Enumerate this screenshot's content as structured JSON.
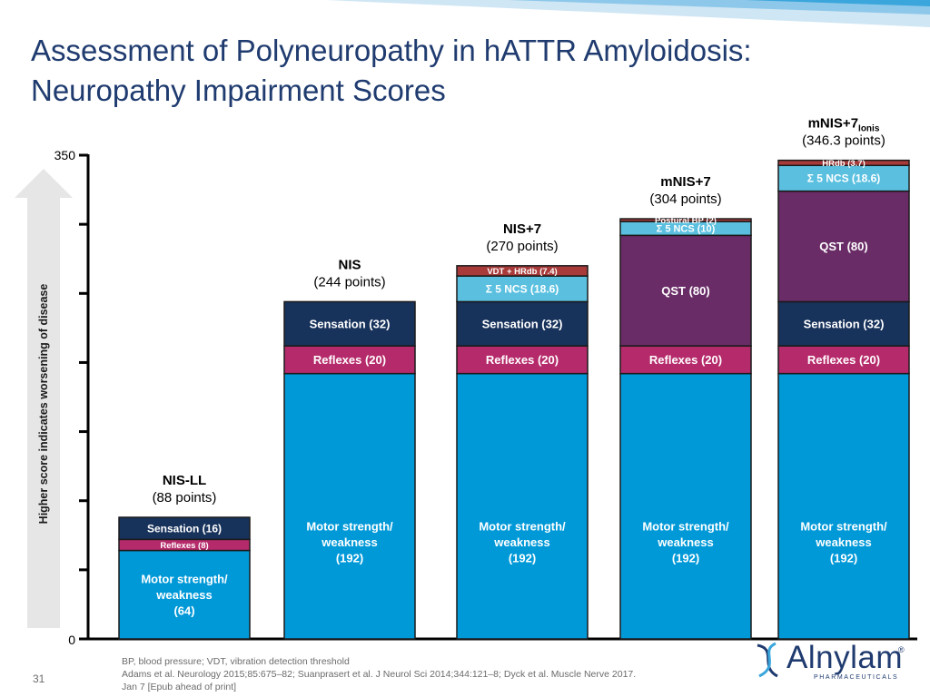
{
  "title_line1": "Assessment of Polyneuropathy in hATTR Amyloidosis:",
  "title_line2": "Neuropathy Impairment Scores",
  "slide_number": "31",
  "footnotes": [
    "BP, blood pressure; VDT, vibration detection threshold",
    "Adams et al. Neurology 2015;85:675–82; Suanprasert et al. J Neurol Sci 2014;344:121–8; Dyck et al. Muscle Nerve 2017.",
    "Jan 7 [Epub ahead of print]"
  ],
  "logo": {
    "word": "Alnylam",
    "sub": "PHARMACEUTICALS",
    "reg": "®"
  },
  "colors": {
    "motor": "#0099d8",
    "reflexes": "#b52a6a",
    "sensation": "#17325b",
    "ncs": "#5bc0e0",
    "vdt_hrdb": "#a83a3a",
    "qst": "#6a2c67",
    "postural": "#a83a3a",
    "title": "#1f3b6f",
    "arrow": "#e6e6e6"
  },
  "chart_data": {
    "type": "bar",
    "stacked": true,
    "ylim": [
      0,
      350
    ],
    "yticks": [
      "350",
      "0"
    ],
    "ylabel": "Higher score indicates worsening of disease",
    "grid": false,
    "categories": [
      {
        "name": "NIS-LL",
        "total_label": "(88 points)",
        "segments": [
          {
            "label": [
              "Motor strength/",
              "weakness",
              "(64)"
            ],
            "value": 64,
            "color": "motor"
          },
          {
            "label": [
              "Reflexes (8)"
            ],
            "value": 8,
            "color": "reflexes"
          },
          {
            "label": [
              "Sensation (16)"
            ],
            "value": 16,
            "color": "sensation"
          }
        ]
      },
      {
        "name": "NIS",
        "total_label": "(244 points)",
        "segments": [
          {
            "label": [
              "Motor strength/",
              "weakness",
              "(192)"
            ],
            "value": 192,
            "color": "motor"
          },
          {
            "label": [
              "Reflexes (20)"
            ],
            "value": 20,
            "color": "reflexes"
          },
          {
            "label": [
              "Sensation (32)"
            ],
            "value": 32,
            "color": "sensation"
          }
        ]
      },
      {
        "name": "NIS+7",
        "total_label": "(270 points)",
        "segments": [
          {
            "label": [
              "Motor strength/",
              "weakness",
              "(192)"
            ],
            "value": 192,
            "color": "motor"
          },
          {
            "label": [
              "Reflexes (20)"
            ],
            "value": 20,
            "color": "reflexes"
          },
          {
            "label": [
              "Sensation (32)"
            ],
            "value": 32,
            "color": "sensation"
          },
          {
            "label": [
              "Σ 5 NCS (18.6)"
            ],
            "value": 18.6,
            "color": "ncs"
          },
          {
            "label": [
              "VDT  + HRdb (7.4)"
            ],
            "value": 7.4,
            "color": "vdt_hrdb"
          }
        ]
      },
      {
        "name": "mNIS+7",
        "total_label": "(304 points)",
        "segments": [
          {
            "label": [
              "Motor strength/",
              "weakness",
              "(192)"
            ],
            "value": 192,
            "color": "motor"
          },
          {
            "label": [
              "Reflexes (20)"
            ],
            "value": 20,
            "color": "reflexes"
          },
          {
            "label": [
              "QST (80)"
            ],
            "value": 80,
            "color": "qst"
          },
          {
            "label": [
              "Σ 5 NCS (10)"
            ],
            "value": 10,
            "color": "ncs"
          },
          {
            "label": [
              "Postural BP (2)"
            ],
            "value": 2,
            "color": "postural"
          }
        ]
      },
      {
        "name": "mNIS+7",
        "name_subscript": "Ionis",
        "total_label": "(346.3 points)",
        "segments": [
          {
            "label": [
              "Motor strength/",
              "weakness",
              "(192)"
            ],
            "value": 192,
            "color": "motor"
          },
          {
            "label": [
              "Reflexes (20)"
            ],
            "value": 20,
            "color": "reflexes"
          },
          {
            "label": [
              "Sensation (32)"
            ],
            "value": 32,
            "color": "sensation"
          },
          {
            "label": [
              "QST (80)"
            ],
            "value": 80,
            "color": "qst"
          },
          {
            "label": [
              "Σ 5 NCS (18.6)"
            ],
            "value": 18.6,
            "color": "ncs"
          },
          {
            "label": [
              "HRdb (3.7)"
            ],
            "value": 3.7,
            "color": "vdt_hrdb"
          }
        ]
      }
    ]
  }
}
